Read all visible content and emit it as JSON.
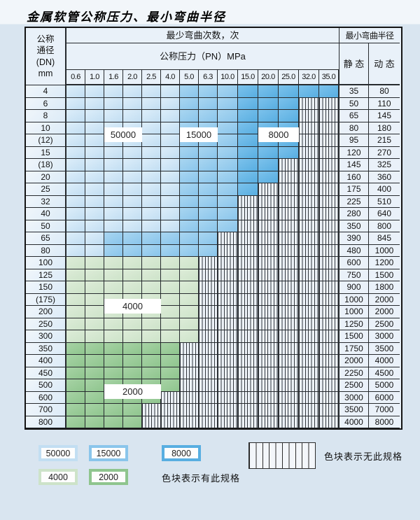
{
  "title": "金属软管公称压力、最小弯曲半径",
  "table": {
    "dn_header_lines": [
      "公称",
      "通径",
      "(DN)",
      "mm"
    ],
    "cycles_header": "最少弯曲次数，次",
    "pressure_header": "公称压力（PN）MPa",
    "radius_header": "最小弯曲半径",
    "static_header": "静 态",
    "dynamic_header": "动 态",
    "pressure_columns": [
      "0.6",
      "1.0",
      "1.6",
      "2.0",
      "2.5",
      "4.0",
      "5.0",
      "6.3",
      "10.0",
      "15.0",
      "20.0",
      "25.0",
      "32.0",
      "35.0"
    ],
    "rows": [
      {
        "dn": "4",
        "static": "35",
        "dynamic": "80",
        "zone": "blue",
        "colored_through": 14,
        "mid_from": 7,
        "dark_from": 10
      },
      {
        "dn": "6",
        "static": "50",
        "dynamic": "110",
        "zone": "blue",
        "colored_through": 12,
        "mid_from": 7,
        "dark_from": 10
      },
      {
        "dn": "8",
        "static": "65",
        "dynamic": "145",
        "zone": "blue",
        "colored_through": 12,
        "mid_from": 7,
        "dark_from": 10
      },
      {
        "dn": "10",
        "static": "80",
        "dynamic": "180",
        "zone": "blue",
        "colored_through": 12,
        "mid_from": 7,
        "dark_from": 10
      },
      {
        "dn": "(12)",
        "static": "95",
        "dynamic": "215",
        "zone": "blue",
        "colored_through": 12,
        "mid_from": 7,
        "dark_from": 10
      },
      {
        "dn": "15",
        "static": "120",
        "dynamic": "270",
        "zone": "blue",
        "colored_through": 12,
        "mid_from": 7,
        "dark_from": 10
      },
      {
        "dn": "(18)",
        "static": "145",
        "dynamic": "325",
        "zone": "blue",
        "colored_through": 11,
        "mid_from": 7,
        "dark_from": 10
      },
      {
        "dn": "20",
        "static": "160",
        "dynamic": "360",
        "zone": "blue",
        "colored_through": 11,
        "mid_from": 7,
        "dark_from": 10
      },
      {
        "dn": "25",
        "static": "175",
        "dynamic": "400",
        "zone": "blue",
        "colored_through": 10,
        "mid_from": 7,
        "dark_from": 10
      },
      {
        "dn": "32",
        "static": "225",
        "dynamic": "510",
        "zone": "blue",
        "colored_through": 9,
        "mid_from": 7,
        "dark_from": null
      },
      {
        "dn": "40",
        "static": "280",
        "dynamic": "640",
        "zone": "blue",
        "colored_through": 9,
        "mid_from": 7,
        "dark_from": null
      },
      {
        "dn": "50",
        "static": "350",
        "dynamic": "800",
        "zone": "blue",
        "colored_through": 9,
        "mid_from": 7,
        "dark_from": null
      },
      {
        "dn": "65",
        "static": "390",
        "dynamic": "845",
        "zone": "blue",
        "colored_through": 8,
        "mid_from": 3,
        "dark_from": null
      },
      {
        "dn": "80",
        "static": "480",
        "dynamic": "1000",
        "zone": "blue",
        "colored_through": 8,
        "mid_from": 3,
        "dark_from": null
      },
      {
        "dn": "100",
        "static": "600",
        "dynamic": "1200",
        "zone": "green_light",
        "colored_through": 7
      },
      {
        "dn": "125",
        "static": "750",
        "dynamic": "1500",
        "zone": "green_light",
        "colored_through": 7
      },
      {
        "dn": "150",
        "static": "900",
        "dynamic": "1800",
        "zone": "green_light",
        "colored_through": 7
      },
      {
        "dn": "(175)",
        "static": "1000",
        "dynamic": "2000",
        "zone": "green_light",
        "colored_through": 7
      },
      {
        "dn": "200",
        "static": "1000",
        "dynamic": "2000",
        "zone": "green_light",
        "colored_through": 7
      },
      {
        "dn": "250",
        "static": "1250",
        "dynamic": "2500",
        "zone": "green_light",
        "colored_through": 7
      },
      {
        "dn": "300",
        "static": "1500",
        "dynamic": "3000",
        "zone": "green_light",
        "colored_through": 7
      },
      {
        "dn": "350",
        "static": "1750",
        "dynamic": "3500",
        "zone": "green_dark",
        "colored_through": 6
      },
      {
        "dn": "400",
        "static": "2000",
        "dynamic": "4000",
        "zone": "green_dark",
        "colored_through": 6
      },
      {
        "dn": "450",
        "static": "2250",
        "dynamic": "4500",
        "zone": "green_dark",
        "colored_through": 6
      },
      {
        "dn": "500",
        "static": "2500",
        "dynamic": "5000",
        "zone": "green_dark",
        "colored_through": 6
      },
      {
        "dn": "600",
        "static": "3000",
        "dynamic": "6000",
        "zone": "green_dark",
        "colored_through": 5
      },
      {
        "dn": "700",
        "static": "3500",
        "dynamic": "7000",
        "zone": "green_dark",
        "colored_through": 4
      },
      {
        "dn": "800",
        "static": "4000",
        "dynamic": "8000",
        "zone": "green_dark",
        "colored_through": 4
      }
    ],
    "zone_labels": [
      {
        "text": "50000",
        "col_start": 3,
        "col_end": 4,
        "row_start": 4,
        "row_end": 5
      },
      {
        "text": "15000",
        "col_start": 7,
        "col_end": 8,
        "row_start": 4,
        "row_end": 5
      },
      {
        "text": "8000",
        "col_start": 11,
        "col_end": 12,
        "row_start": 4,
        "row_end": 5
      },
      {
        "text": "4000",
        "col_start": 3,
        "col_end": 5,
        "row_start": 18,
        "row_end": 19
      },
      {
        "text": "2000",
        "col_start": 3,
        "col_end": 5,
        "row_start": 25,
        "row_end": 26
      }
    ]
  },
  "legend": {
    "items": [
      {
        "label": "50000",
        "zone": "blue_light"
      },
      {
        "label": "15000",
        "zone": "blue_mid"
      },
      {
        "label": "8000",
        "zone": "blue_dark"
      },
      {
        "label": "4000",
        "zone": "green_light"
      },
      {
        "label": "2000",
        "zone": "green_dark"
      }
    ],
    "available_text": "色块表示有此规格",
    "unavailable_text": "色块表示无此规格"
  },
  "colors": {
    "blue_light": "#c2def2",
    "blue_mid": "#8ac5eb",
    "blue_dark": "#58aee1",
    "green_light": "#cde3c9",
    "green_dark": "#8fc58e",
    "hatch_background": "#edf2f8",
    "grid_line": "#262a2e"
  },
  "chart_data": {
    "type": "heatmap",
    "x_pressures_MPa": [
      0.6,
      1.0,
      1.6,
      2.0,
      2.5,
      4.0,
      5.0,
      6.3,
      10.0,
      15.0,
      20.0,
      25.0,
      32.0,
      35.0
    ],
    "y_dn_mm": [
      "4",
      "6",
      "8",
      "10",
      "(12)",
      "15",
      "(18)",
      "20",
      "25",
      "32",
      "40",
      "50",
      "65",
      "80",
      "100",
      "125",
      "150",
      "(175)",
      "200",
      "250",
      "300",
      "350",
      "400",
      "450",
      "500",
      "600",
      "700",
      "800"
    ],
    "cycle_zones": [
      {
        "cycles": 50000,
        "color": "#c2def2",
        "coverage": "DN4–DN80 low-pressure band (0.6–4.0 MPa; 0.6–1.0 for DN65–80)"
      },
      {
        "cycles": 15000,
        "color": "#8ac5eb",
        "coverage": "DN4–DN80 mid-pressure band (5.0–10.0 MPa; from 1.6 for DN65–80)"
      },
      {
        "cycles": 8000,
        "color": "#58aee1",
        "coverage": "DN4–DN25 high-pressure band (15.0–35.0 MPa)"
      },
      {
        "cycles": 4000,
        "color": "#cde3c9",
        "coverage": "DN100–DN300, 0.6–5.0 MPa"
      },
      {
        "cycles": 2000,
        "color": "#8fc58e",
        "coverage": "DN350–DN800, 0.6–4.0 MPa (narrowing to 0.6–2.0 at DN700–800)"
      }
    ],
    "hatched_means": "无此规格 (specification not available)"
  }
}
